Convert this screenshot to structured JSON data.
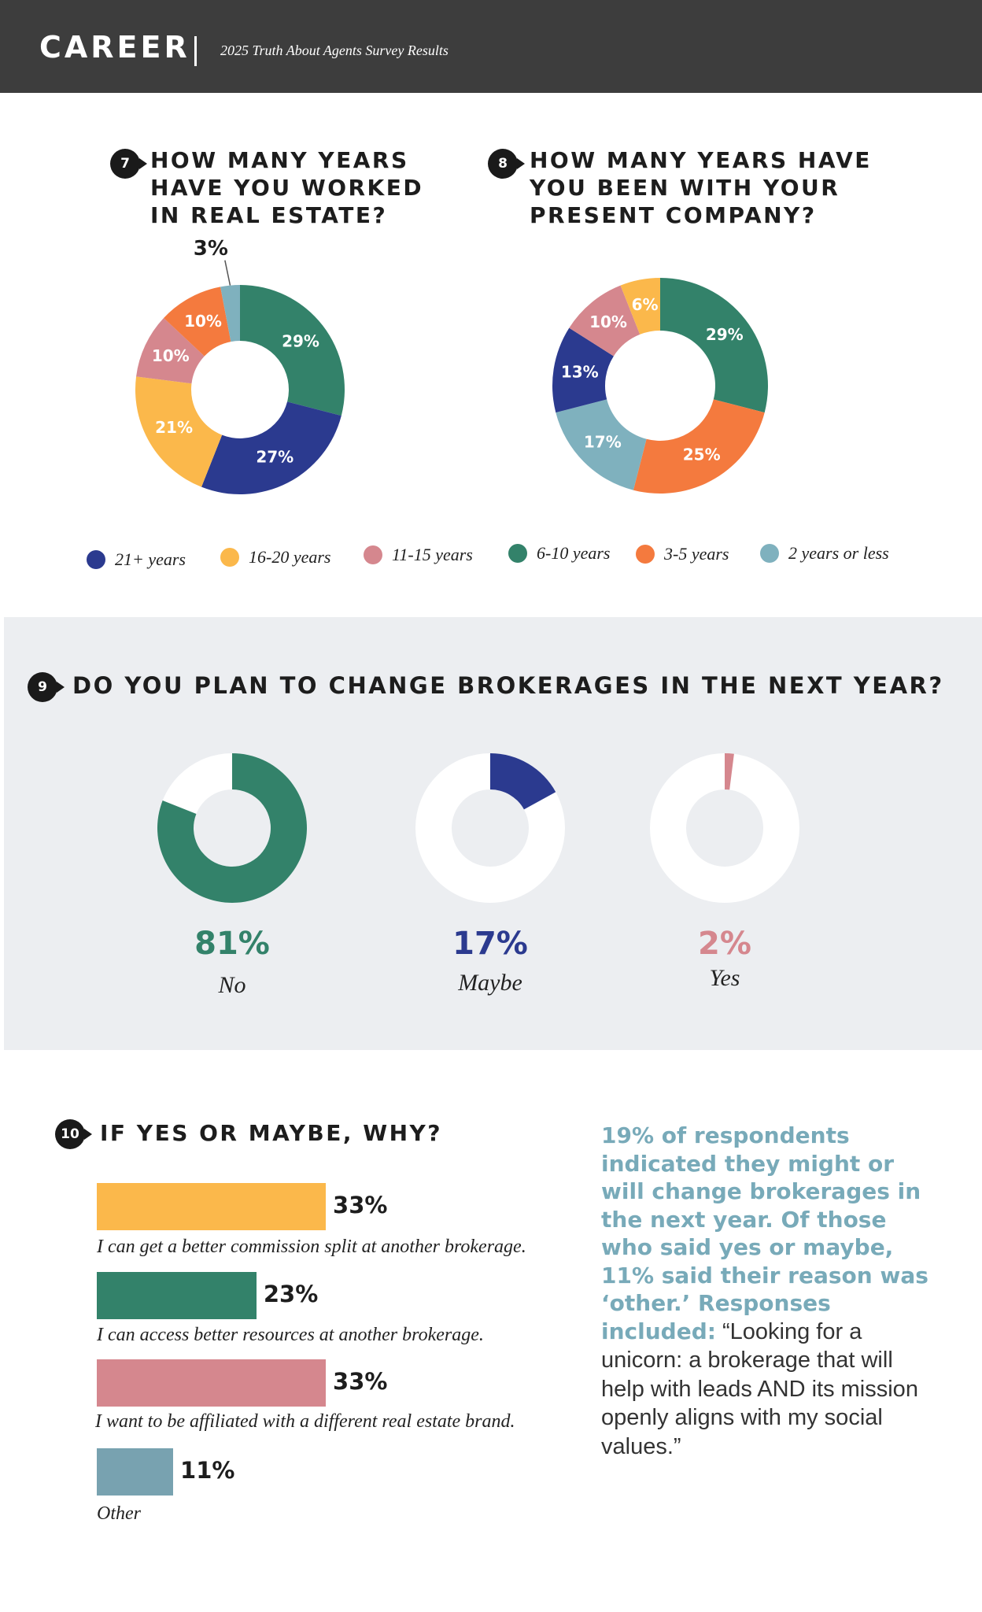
{
  "header": {
    "brand": "CAREER",
    "subtitle": "2025 Truth About Agents Survey Results"
  },
  "colors": {
    "navy": "#2b3a8f",
    "yellow": "#fbb84b",
    "pink": "#d5878e",
    "green": "#33826a",
    "orange": "#f47a3e",
    "lightblue": "#7fb1be",
    "barblue": "#78a2b0",
    "noteblue": "#78aab9"
  },
  "legend": [
    {
      "label": "21+ years",
      "color": "#2b3a8f"
    },
    {
      "label": "16-20 years",
      "color": "#fbb84b"
    },
    {
      "label": "11-15 years",
      "color": "#d5878e"
    },
    {
      "label": "6-10 years",
      "color": "#33826a"
    },
    {
      "label": "3-5 years",
      "color": "#f47a3e"
    },
    {
      "label": "2 years or less",
      "color": "#7fb1be"
    }
  ],
  "q7": {
    "number": "7",
    "title": "HOW MANY YEARS\nHAVE YOU WORKED\nIN REAL ESTATE?"
  },
  "q8": {
    "number": "8",
    "title": "HOW MANY YEARS HAVE\nYOU BEEN WITH YOUR\nPRESENT COMPANY?"
  },
  "q9": {
    "number": "9",
    "title": "DO YOU PLAN TO CHANGE BROKERAGES IN THE NEXT YEAR?"
  },
  "q10": {
    "number": "10",
    "title": "IF YES OR MAYBE, WHY?"
  },
  "side_note": {
    "bold": "19% of respondents indicated they might or will change brokerages in the next year. Of those who said yes or maybe, 11% said their reason was ‘other.’ Responses included:",
    "plain": " “Looking for a unicorn: a brokerage that will help with leads AND its mission openly aligns with my social values.”"
  },
  "chart_data": [
    {
      "type": "pie",
      "title": "HOW MANY YEARS HAVE YOU WORKED IN REAL ESTATE?",
      "slices": [
        {
          "label": "6-10 years",
          "value": 29,
          "text": "29%",
          "color": "#33826a"
        },
        {
          "label": "21+ years",
          "value": 27,
          "text": "27%",
          "color": "#2b3a8f"
        },
        {
          "label": "16-20 years",
          "value": 21,
          "text": "21%",
          "color": "#fbb84b"
        },
        {
          "label": "11-15 years",
          "value": 10,
          "text": "10%",
          "color": "#d5878e"
        },
        {
          "label": "3-5 years",
          "value": 10,
          "text": "10%",
          "color": "#f47a3e"
        },
        {
          "label": "2 years or less",
          "value": 3,
          "text": "3%",
          "color": "#7fb1be"
        }
      ]
    },
    {
      "type": "pie",
      "title": "HOW MANY YEARS HAVE YOU BEEN WITH YOUR PRESENT COMPANY?",
      "slices": [
        {
          "label": "6-10 years",
          "value": 29,
          "text": "29%",
          "color": "#33826a"
        },
        {
          "label": "3-5 years",
          "value": 25,
          "text": "25%",
          "color": "#f47a3e"
        },
        {
          "label": "2 years or less",
          "value": 17,
          "text": "17%",
          "color": "#7fb1be"
        },
        {
          "label": "21+ years",
          "value": 13,
          "text": "13%",
          "color": "#2b3a8f"
        },
        {
          "label": "11-15 years",
          "value": 10,
          "text": "10%",
          "color": "#d5878e"
        },
        {
          "label": "16-20 years",
          "value": 6,
          "text": "6%",
          "color": "#fbb84b"
        }
      ]
    },
    {
      "type": "pie",
      "title": "DO YOU PLAN TO CHANGE BROKERAGES IN THE NEXT YEAR?",
      "slices": [
        {
          "label": "No",
          "value": 81,
          "text": "81%",
          "color": "#33826a"
        },
        {
          "label": "Maybe",
          "value": 17,
          "text": "17%",
          "color": "#2b3a8f"
        },
        {
          "label": "Yes",
          "value": 2,
          "text": "2%",
          "color": "#d5878e"
        }
      ]
    },
    {
      "type": "bar",
      "title": "IF YES OR MAYBE, WHY?",
      "xlim": [
        0,
        100
      ],
      "bars": [
        {
          "label": "I can get a better commission split at another brokerage.",
          "value": 33,
          "text": "33%",
          "color": "#fbb84b"
        },
        {
          "label": "I can access better resources at another brokerage.",
          "value": 23,
          "text": "23%",
          "color": "#33826a"
        },
        {
          "label": "I want to be affiliated with a different real estate brand.",
          "value": 33,
          "text": "33%",
          "color": "#d5878e"
        },
        {
          "label": "Other",
          "value": 11,
          "text": "11%",
          "color": "#78a2b0"
        }
      ]
    }
  ]
}
